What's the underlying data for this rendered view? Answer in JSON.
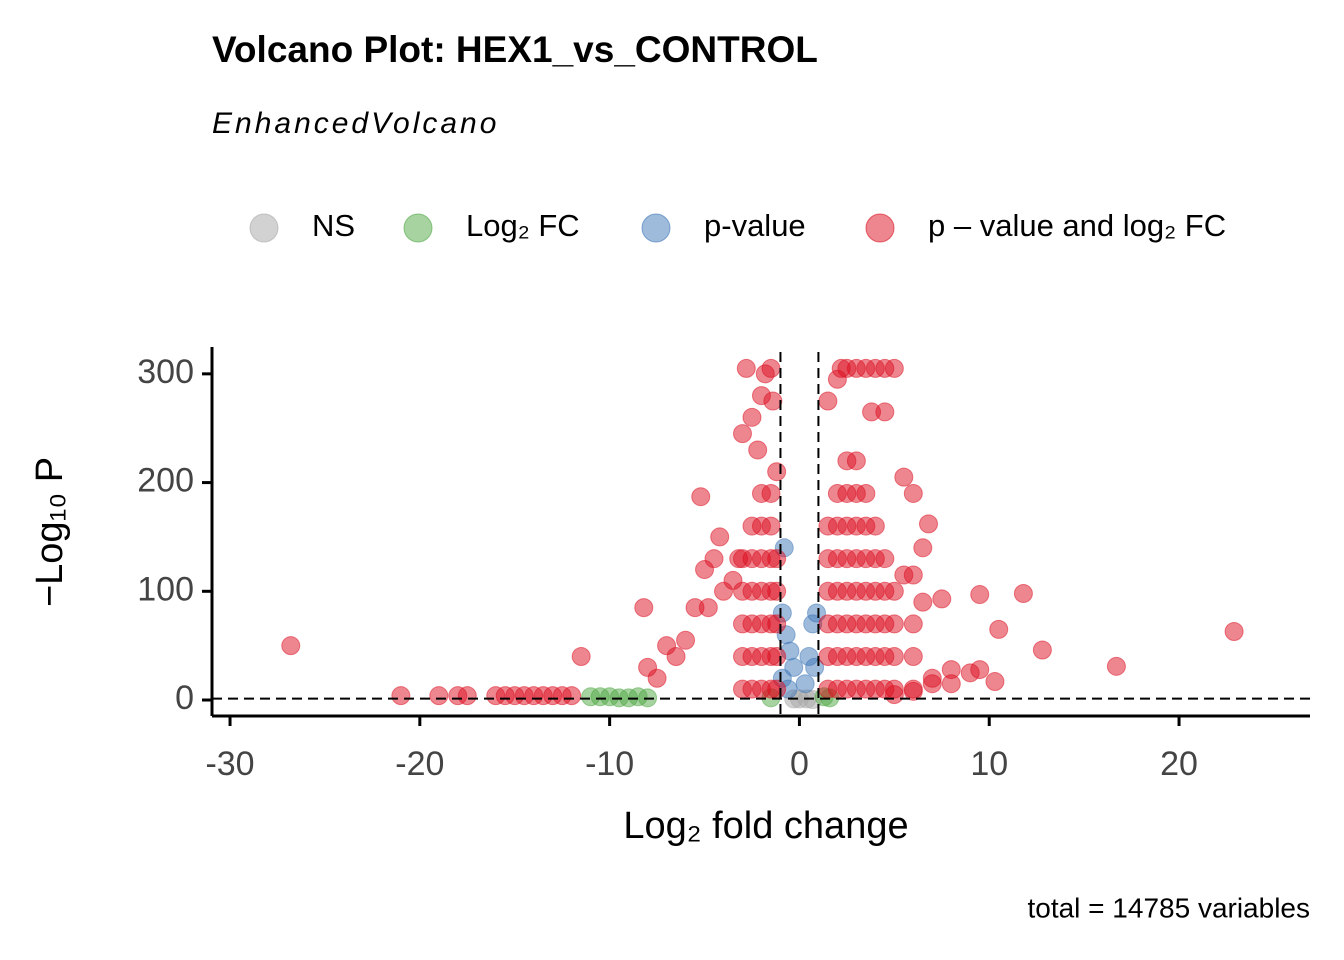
{
  "chart_data": {
    "type": "scatter",
    "title": "Volcano Plot: HEX1_vs_CONTROL",
    "subtitle": "EnhancedVolcano",
    "x_label": "Log₂ fold change",
    "y_label": "−Log₁₀ P",
    "caption": "total = 14785 variables",
    "legend": "top",
    "xlim": [
      -30.95,
      26.9
    ],
    "ylim": [
      -14.7,
      324.7
    ],
    "xticks": [
      -30,
      -20,
      -10,
      0,
      10,
      20
    ],
    "yticks": [
      0,
      100,
      200,
      300
    ],
    "cutoffs": {
      "x": [
        -1,
        1
      ],
      "y": 1.3
    },
    "series": [
      {
        "name": "NS",
        "color": "#a6a6a6",
        "x": [
          -0.3,
          0,
          0.4,
          0.7
        ],
        "values": [
          1,
          1,
          1,
          0.5
        ]
      },
      {
        "name": "Log₂ FC",
        "color": "#4fa843",
        "x": [
          -11,
          -10.5,
          -10,
          -9.5,
          -9,
          -8.5,
          -8,
          1.3,
          1.6,
          -1.5
        ],
        "values": [
          3,
          3,
          3,
          2,
          2,
          3,
          2,
          3,
          2,
          2
        ]
      },
      {
        "name": "p-value",
        "color": "#3f77b8",
        "x": [
          -0.8,
          -0.9,
          -0.7,
          -0.5,
          -0.3,
          0.5,
          0.7,
          0.9,
          -0.9,
          0.3,
          0.8,
          -0.6
        ],
        "values": [
          140,
          80,
          60,
          45,
          30,
          40,
          70,
          80,
          20,
          15,
          30,
          10
        ]
      },
      {
        "name": "p – value and log₂ FC",
        "color": "#dc0e20",
        "x": [
          -26.8,
          -21,
          -19,
          -18,
          -17.5,
          -16,
          -15.5,
          -15,
          -14.5,
          -14,
          -13.5,
          -13,
          -12.5,
          -12,
          -11.5,
          -8.2,
          -8,
          -7.5,
          -7,
          -6.5,
          -6,
          -5.5,
          -5.2,
          -5,
          -4.8,
          -4.5,
          -4.2,
          -4,
          -3.5,
          -3.2,
          -3,
          -2.8,
          -2.5,
          -2.2,
          -2,
          -1.8,
          -1.5,
          -1.4,
          -1.2,
          -3,
          -3,
          -3,
          -3,
          -3,
          -2.5,
          -2.5,
          -2.5,
          -2.5,
          -2.5,
          -2.5,
          -2,
          -2,
          -2,
          -2,
          -2,
          -2,
          -2,
          -1.5,
          -1.5,
          -1.5,
          -1.5,
          -1.5,
          -1.5,
          -1.5,
          -1.2,
          -1.2,
          -1.2,
          -1.2,
          -1.2,
          1.5,
          2,
          2.2,
          2.5,
          3,
          3.5,
          4,
          4.5,
          5,
          3.8,
          4.5,
          5.5,
          6,
          6.5,
          6.8,
          5.5,
          6,
          6.5,
          7.5,
          9.5,
          11.8,
          10.5,
          12.8,
          16.7,
          22.9,
          10.3,
          8,
          9,
          9.5,
          7,
          6,
          5,
          1.5,
          1.5,
          1.5,
          1.5,
          1.5,
          1.5,
          2,
          2,
          2,
          2,
          2,
          2,
          2,
          2.5,
          2.5,
          2.5,
          2.5,
          2.5,
          2.5,
          2.5,
          2.5,
          3,
          3,
          3,
          3,
          3,
          3,
          3,
          3,
          3.5,
          3.5,
          3.5,
          3.5,
          3.5,
          3.5,
          3.5,
          4,
          4,
          4,
          4,
          4,
          4,
          4.5,
          4.5,
          4.5,
          4.5,
          4.5,
          5,
          5,
          5,
          5,
          6,
          6,
          6,
          7,
          8
        ],
        "values": [
          50,
          4,
          4,
          4,
          4,
          4,
          4,
          4,
          4,
          4,
          4,
          4,
          4,
          4,
          40,
          85,
          30,
          20,
          50,
          40,
          55,
          85,
          187,
          120,
          85,
          130,
          150,
          100,
          110,
          130,
          245,
          305,
          260,
          230,
          280,
          300,
          305,
          275,
          210,
          10,
          40,
          70,
          100,
          130,
          10,
          40,
          70,
          100,
          130,
          160,
          10,
          40,
          70,
          100,
          130,
          160,
          190,
          10,
          40,
          70,
          100,
          130,
          160,
          190,
          10,
          40,
          70,
          100,
          130,
          275,
          295,
          305,
          305,
          305,
          305,
          305,
          305,
          305,
          265,
          265,
          205,
          190,
          140,
          162,
          115,
          115,
          90,
          93,
          97,
          98,
          65,
          46,
          31,
          63,
          17,
          28,
          25,
          28,
          15,
          8,
          5,
          10,
          40,
          70,
          100,
          130,
          160,
          10,
          40,
          70,
          100,
          130,
          160,
          190,
          10,
          40,
          70,
          100,
          130,
          160,
          190,
          220,
          10,
          40,
          70,
          100,
          130,
          160,
          190,
          220,
          10,
          40,
          70,
          100,
          130,
          160,
          190,
          10,
          40,
          70,
          100,
          130,
          160,
          10,
          40,
          70,
          100,
          130,
          10,
          40,
          70,
          100,
          10,
          40,
          70,
          20,
          15
        ]
      }
    ]
  }
}
